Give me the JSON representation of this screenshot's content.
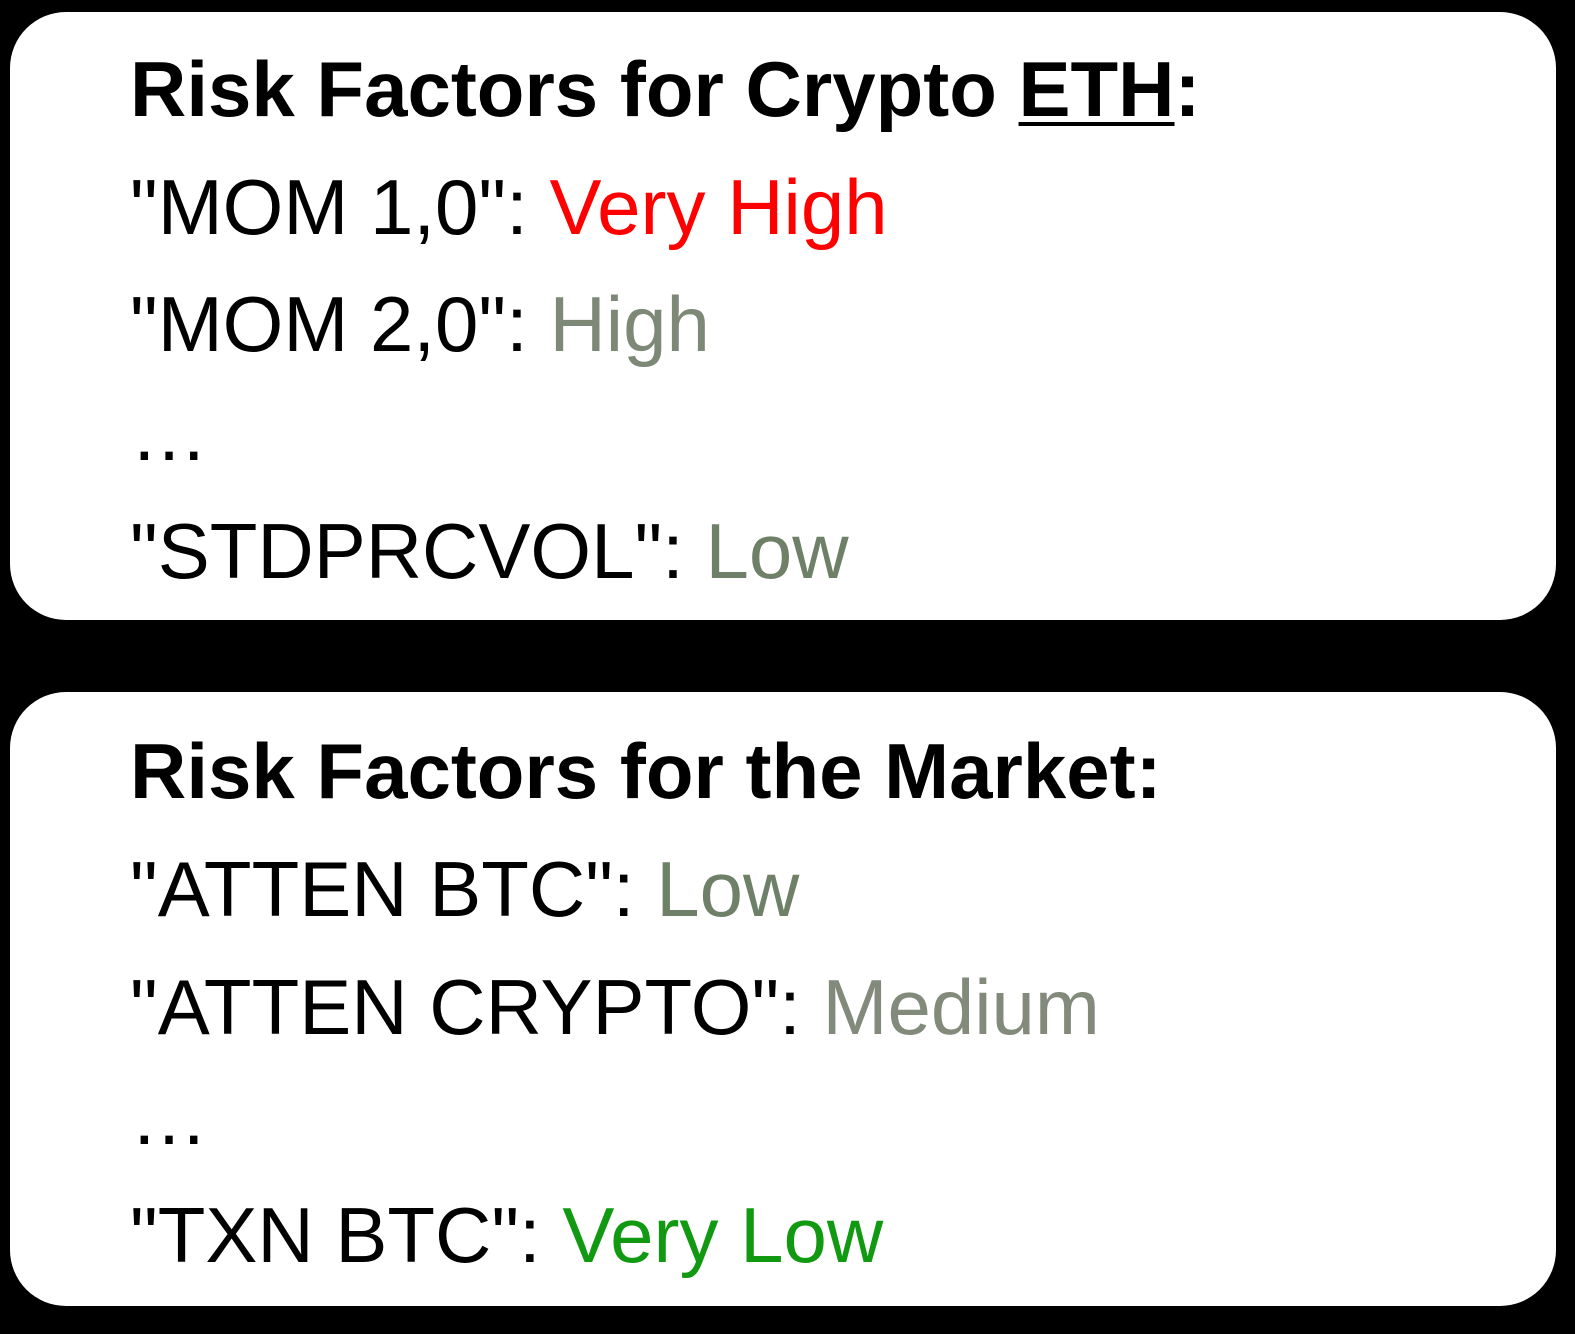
{
  "crypto_panel": {
    "heading_prefix": "Risk Factors for Crypto ",
    "coin": "ETH",
    "heading_suffix": ":",
    "factors": [
      {
        "name": "\"MOM 1,0\": ",
        "level": "Very High",
        "color": "#ff0000"
      },
      {
        "name": "\"MOM 2,0\": ",
        "level": "High",
        "color": "#7d8877"
      },
      {
        "name": "\"STDPRCVOL\": ",
        "level": "Low",
        "color": "#6e8067"
      }
    ],
    "ellipsis": "…"
  },
  "market_panel": {
    "heading": "Risk Factors for the Market:",
    "factors": [
      {
        "name": "\"ATTEN BTC\": ",
        "level": "Low",
        "color": "#6e8067"
      },
      {
        "name": "\"ATTEN CRYPTO\": ",
        "level": "Medium",
        "color": "#828a7c"
      },
      {
        "name": "\"TXN BTC\": ",
        "level": "Very Low",
        "color": "#119911"
      }
    ],
    "ellipsis": "…"
  }
}
